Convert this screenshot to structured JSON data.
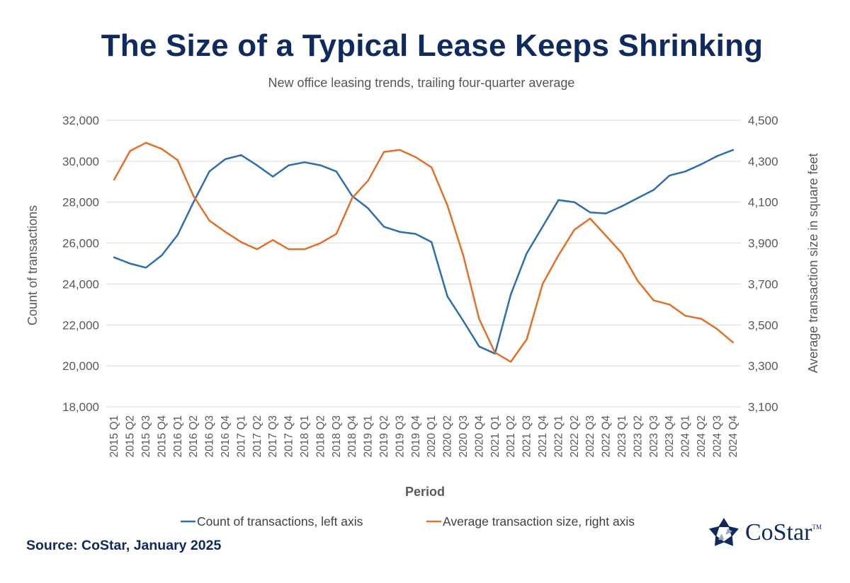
{
  "title": "The Size of a Typical Lease Keeps Shrinking",
  "subtitle": "New office leasing trends, trailing four-quarter average",
  "source": "Source: CoStar, January 2025",
  "logo": {
    "name": "CoStar",
    "tm": "TM",
    "icon": "costar-star-icon"
  },
  "colors": {
    "title": "#0e2a5e",
    "count_series": "#2e6db0",
    "size_series": "#e0702a",
    "grid": "#d9d9d9",
    "text": "#595959"
  },
  "chart_data": {
    "type": "line",
    "xlabel": "Period",
    "ylabel_left": "Count of transactions",
    "ylabel_right": "Average transaction size in square feet",
    "ylim_left": [
      18000,
      32000
    ],
    "ylim_right": [
      3100,
      4500
    ],
    "yticks_left": [
      "18,000",
      "20,000",
      "22,000",
      "24,000",
      "26,000",
      "28,000",
      "30,000",
      "32,000"
    ],
    "yticks_right": [
      "3,100",
      "3,300",
      "3,500",
      "3,700",
      "3,900",
      "4,100",
      "4,300",
      "4,500"
    ],
    "grid": "horizontal",
    "legend_placement": "bottom",
    "categories": [
      "2015 Q1",
      "2015 Q2",
      "2015 Q3",
      "2015 Q4",
      "2016 Q1",
      "2016 Q2",
      "2016 Q3",
      "2016 Q4",
      "2017 Q1",
      "2017 Q2",
      "2017 Q3",
      "2017 Q4",
      "2018 Q1",
      "2018 Q2",
      "2018 Q3",
      "2018 Q4",
      "2019 Q1",
      "2019 Q2",
      "2019 Q3",
      "2019 Q4",
      "2020 Q1",
      "2020 Q2",
      "2020 Q3",
      "2020 Q4",
      "2021 Q1",
      "2021 Q2",
      "2021 Q3",
      "2021 Q4",
      "2022 Q1",
      "2022 Q2",
      "2022 Q3",
      "2022 Q4",
      "2023 Q1",
      "2023 Q2",
      "2023 Q3",
      "2023 Q4",
      "2024 Q1",
      "2024 Q2",
      "2024 Q3",
      "2024 Q4"
    ],
    "series": [
      {
        "name": "Count of transactions, left axis",
        "axis": "left",
        "values": [
          25300,
          25000,
          24800,
          25400,
          26400,
          28000,
          29500,
          30100,
          30300,
          29800,
          29250,
          29800,
          29950,
          29800,
          29500,
          28300,
          27700,
          26800,
          26550,
          26450,
          26050,
          23400,
          22200,
          20950,
          20600,
          23500,
          25500,
          26800,
          28100,
          28000,
          27500,
          27450,
          27800,
          28200,
          28600,
          29300,
          29500,
          29850,
          30250,
          30550
        ]
      },
      {
        "name": "Average transaction size, right axis",
        "axis": "right",
        "values": [
          4210,
          4350,
          4390,
          4360,
          4305,
          4130,
          4010,
          3955,
          3905,
          3870,
          3915,
          3870,
          3870,
          3900,
          3945,
          4120,
          4205,
          4345,
          4355,
          4320,
          4270,
          4085,
          3840,
          3530,
          3365,
          3320,
          3430,
          3700,
          3840,
          3965,
          4020,
          3935,
          3850,
          3715,
          3620,
          3600,
          3545,
          3530,
          3480,
          3415
        ]
      }
    ]
  }
}
